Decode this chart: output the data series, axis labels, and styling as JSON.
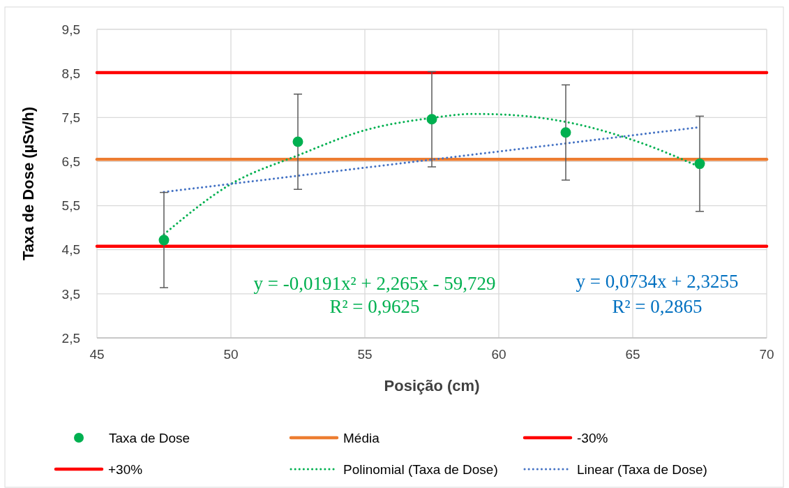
{
  "chart_data": {
    "type": "scatter",
    "xlabel": "Posição (cm)",
    "ylabel": "Taxa de Dose (µSv/h)",
    "xlim": [
      45,
      70
    ],
    "xticks": [
      45,
      50,
      55,
      60,
      65,
      70
    ],
    "ylim": [
      2.5,
      9.5
    ],
    "yticks": [
      {
        "value": 2.5,
        "label": "2,5"
      },
      {
        "value": 3.5,
        "label": "3,5"
      },
      {
        "value": 4.5,
        "label": "4,5"
      },
      {
        "value": 5.5,
        "label": "5,5"
      },
      {
        "value": 6.5,
        "label": "6,5"
      },
      {
        "value": 7.5,
        "label": "7,5"
      },
      {
        "value": 8.5,
        "label": "8,5"
      },
      {
        "value": 9.5,
        "label": "9,5"
      }
    ],
    "grid": true,
    "legend": "bottom",
    "marker": "circle",
    "series": [
      {
        "name": "Taxa de Dose",
        "color": "#00b050",
        "x": [
          47.5,
          52.5,
          57.5,
          62.5,
          67.5
        ],
        "values": [
          4.72,
          6.95,
          7.46,
          7.16,
          6.45
        ],
        "errors": [
          1.08,
          1.08,
          1.08,
          1.08,
          1.08
        ]
      },
      {
        "name": "Média",
        "type": "line",
        "line_style": "solid",
        "marker": "none",
        "color": "#ed7d31",
        "x": [
          45,
          70
        ],
        "values": [
          6.55,
          6.55
        ]
      },
      {
        "name": "-30%",
        "type": "line",
        "line_style": "solid",
        "marker": "none",
        "color": "#ff0000",
        "x": [
          45,
          70
        ],
        "values": [
          4.58,
          4.58
        ]
      },
      {
        "name": "+30%",
        "type": "line",
        "line_style": "solid",
        "marker": "none",
        "color": "#ff0000",
        "x": [
          45,
          70
        ],
        "values": [
          8.52,
          8.52
        ]
      },
      {
        "name": "Polinomial (Taxa de Dose)",
        "type": "line",
        "line_style": "dotted",
        "marker": "none",
        "color": "#00b050",
        "x": [
          47.5,
          50,
          52.5,
          55,
          57.5,
          59,
          60,
          62.5,
          65,
          67.5
        ],
        "values": [
          4.85,
          5.99,
          6.64,
          7.21,
          7.49,
          7.58,
          7.57,
          7.4,
          6.99,
          6.38
        ]
      },
      {
        "name": "Linear (Taxa de Dose)",
        "type": "line",
        "line_style": "dotted",
        "marker": "none",
        "color": "#4472c4",
        "x": [
          47.5,
          67.5
        ],
        "values": [
          5.81,
          7.28
        ]
      }
    ],
    "annotations": [
      "y = -0,0191x² + 2,265x - 59,729",
      "R² = 0,9625",
      "y = 0,0734x + 2,3255",
      "R² = 0,2865"
    ]
  }
}
